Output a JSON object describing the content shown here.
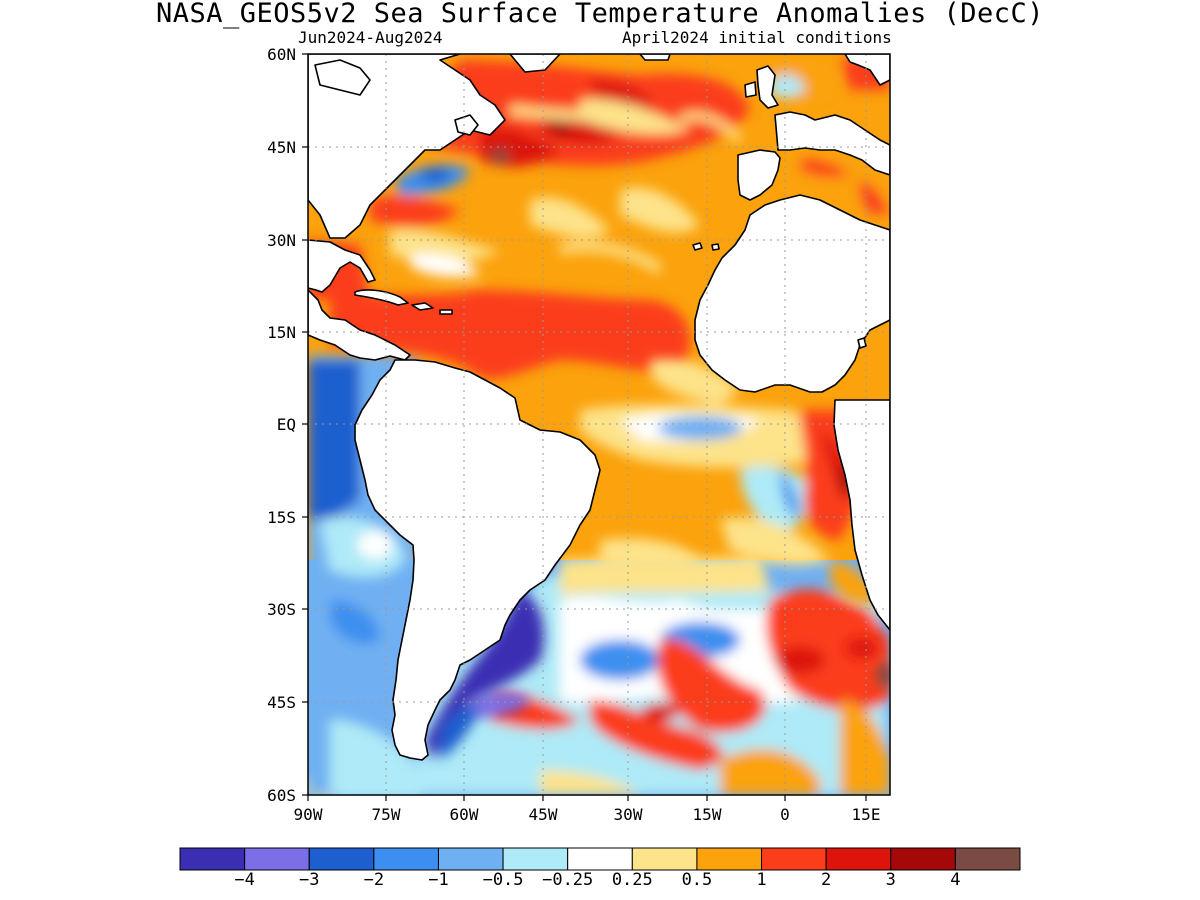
{
  "title": "NASA_GEOS5v2 Sea Surface Temperature Anomalies (DecC)",
  "period": "Jun2024-Aug2024",
  "init": "April2024 initial conditions",
  "lat_labels": [
    "60N",
    "45N",
    "30N",
    "15N",
    "EQ",
    "15S",
    "30S",
    "45S",
    "60S"
  ],
  "lon_labels": [
    "90W",
    "75W",
    "60W",
    "45W",
    "30W",
    "15W",
    "0",
    "15E"
  ],
  "colorbar": {
    "colors": [
      "#3a2fb3",
      "#7b6ee6",
      "#1e5fcf",
      "#3c8ff0",
      "#6fb0f2",
      "#aeeaf7",
      "#ffffff",
      "#fde38a",
      "#fba20c",
      "#fb3d1a",
      "#dc140c",
      "#a50808",
      "#7a4b42"
    ],
    "labels": [
      "-4",
      "-3",
      "-2",
      "-1",
      "-0.5",
      "-0.25",
      "0.25",
      "0.5",
      "1",
      "2",
      "3",
      "4"
    ]
  },
  "colors": {
    "land": "#ffffff",
    "coast": "#000000",
    "grid": "#9a9a9a"
  }
}
